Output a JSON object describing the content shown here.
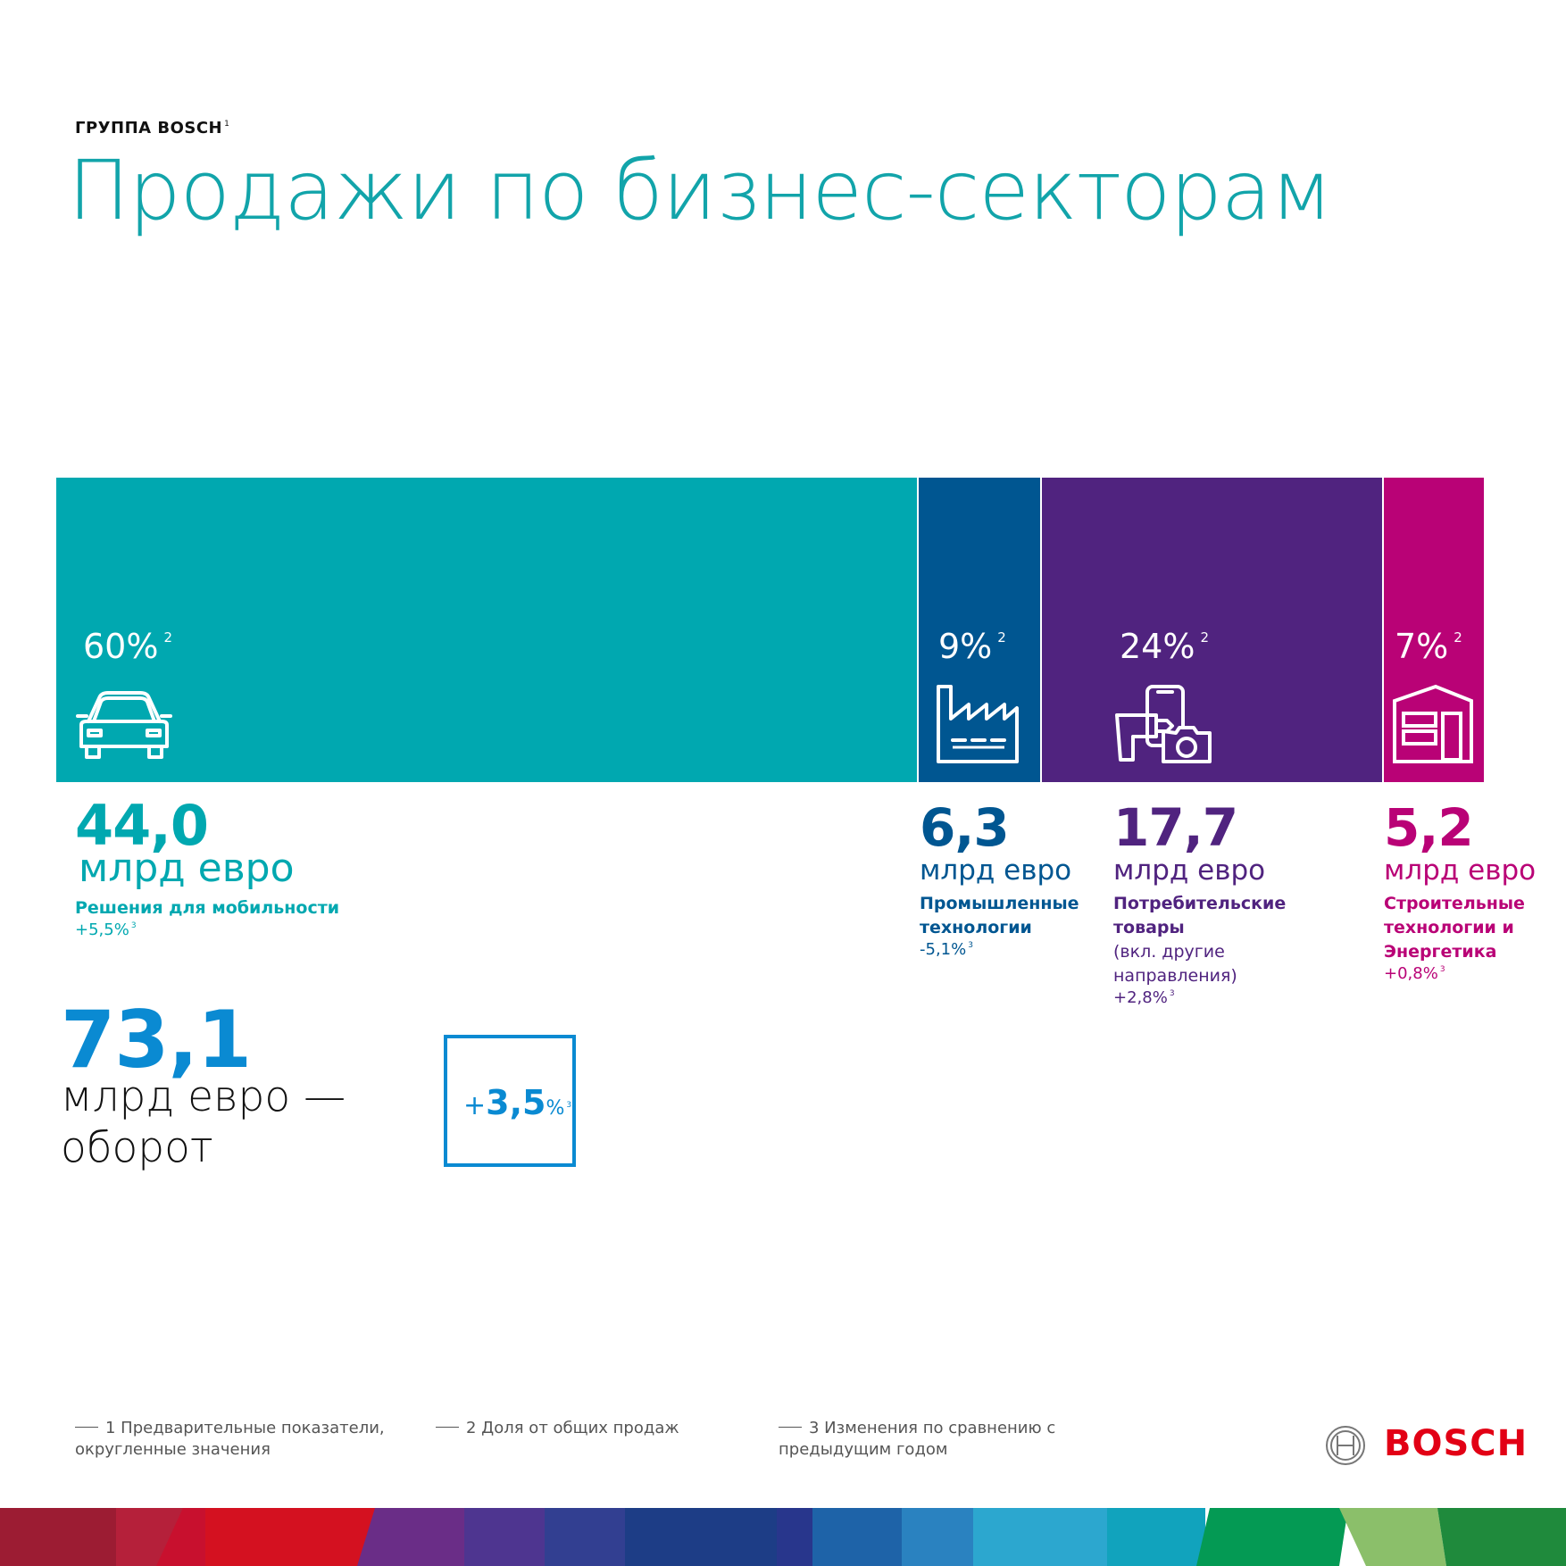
{
  "header": {
    "kicker": "ГРУППА BOSCH",
    "kicker_sup": "1",
    "title": "Продажи по бизнес-секторам"
  },
  "chart_data": {
    "type": "bar",
    "stacked_horizontal": true,
    "unit": "млрд евро",
    "categories": [
      "Решения для мобильности",
      "Промышленные технологии",
      "Потребительские товары",
      "Строительные технологии и Энергетика"
    ],
    "values": [
      44.0,
      6.3,
      17.7,
      5.2
    ],
    "shares_percent": [
      60,
      9,
      24,
      7
    ],
    "change_percent": [
      5.5,
      -5.1,
      2.8,
      0.8
    ],
    "colors": [
      "#00a8b0",
      "#005691",
      "#50237f",
      "#b90276"
    ]
  },
  "segments": [
    {
      "pct": "60%",
      "pct_sup": "2",
      "value": "44,0",
      "unit": "млрд евро",
      "name": "Решения для мобильности",
      "sub": "",
      "change": "+5,5%",
      "change_sup": "3",
      "color": "#00a8b0",
      "text_color": "#00a8b0",
      "icon": "car-icon"
    },
    {
      "pct": "9%",
      "pct_sup": "2",
      "value": "6,3",
      "unit": "млрд евро",
      "name": "Промышленные технологии",
      "sub": "",
      "change": "-5,1%",
      "change_sup": "3",
      "color": "#005691",
      "text_color": "#005691",
      "icon": "factory-icon"
    },
    {
      "pct": "24%",
      "pct_sup": "2",
      "value": "17,7",
      "unit": "млрд евро",
      "name": "Потребительские товары",
      "sub": "(вкл. другие направления)",
      "change": "+2,8%",
      "change_sup": "3",
      "color": "#50237f",
      "text_color": "#50237f",
      "icon": "drill-camera-phone-icon"
    },
    {
      "pct": "7%",
      "pct_sup": "2",
      "value": "5,2",
      "unit": "млрд евро",
      "name": "Строительные технологии и Энергетика",
      "sub": "",
      "change": "+0,8%",
      "change_sup": "3",
      "color": "#b90276",
      "text_color": "#b90276",
      "icon": "building-icon"
    }
  ],
  "total": {
    "value": "73,1",
    "label": "млрд евро — оборот",
    "change_sign": "+",
    "change_value": "3,5",
    "change_unit": "%",
    "change_sup": "3"
  },
  "footnotes": [
    "1 Предварительные показатели, округленные значения",
    "2 Доля от общих продаж",
    "3 Изменения по сравнению с предыдущим годом"
  ],
  "brand": {
    "logo_text": "BOSCH",
    "logo_color": "#e20015",
    "icon": "bosch-armature-icon"
  }
}
